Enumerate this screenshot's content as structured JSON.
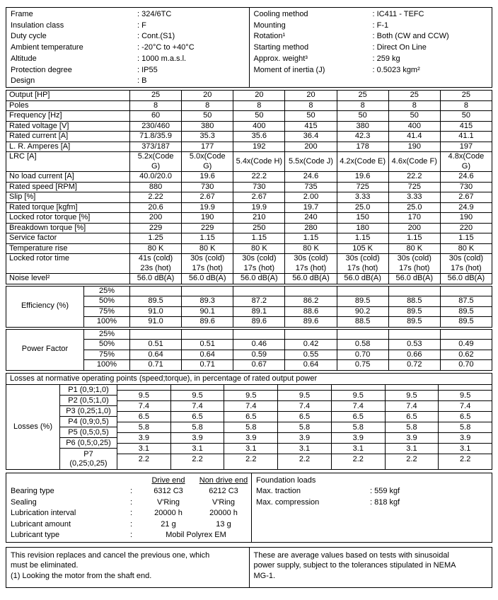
{
  "colors": {
    "background": "#ffffff",
    "text": "#000000",
    "border": "#000000"
  },
  "info": {
    "left": [
      {
        "label": "Frame",
        "value": "324/6TC"
      },
      {
        "label": "Insulation class",
        "value": "F"
      },
      {
        "label": "Duty cycle",
        "value": "Cont.(S1)"
      },
      {
        "label": "Ambient temperature",
        "value": "-20°C to +40°C"
      },
      {
        "label": "Altitude",
        "value": "1000 m.a.s.l."
      },
      {
        "label": "Protection degree",
        "value": "IP55"
      },
      {
        "label": "Design",
        "value": "B"
      }
    ],
    "right": [
      {
        "label": "Cooling method",
        "value": "IC411 - TEFC"
      },
      {
        "label": "Mounting",
        "value": "F-1"
      },
      {
        "label": "Rotation¹",
        "value": "Both (CW and CCW)"
      },
      {
        "label": "Starting method",
        "value": "Direct On Line"
      },
      {
        "label": "Approx. weight³",
        "value": "259 kg"
      },
      {
        "label": "Moment of inertia (J)",
        "value": "0.5023 kgm²"
      }
    ]
  },
  "spec_table": {
    "rows": [
      {
        "label": "Output [HP]",
        "values": [
          "25",
          "20",
          "20",
          "20",
          "25",
          "25",
          "25"
        ]
      },
      {
        "label": "Poles",
        "values": [
          "8",
          "8",
          "8",
          "8",
          "8",
          "8",
          "8"
        ]
      },
      {
        "label": "Frequency [Hz]",
        "values": [
          "60",
          "50",
          "50",
          "50",
          "50",
          "50",
          "50"
        ]
      },
      {
        "label": "Rated voltage [V]",
        "values": [
          "230/460",
          "380",
          "400",
          "415",
          "380",
          "400",
          "415"
        ]
      },
      {
        "label": "Rated current [A]",
        "values": [
          "71.8/35.9",
          "35.3",
          "35.6",
          "36.4",
          "42.3",
          "41.4",
          "41.1"
        ]
      },
      {
        "label": "L. R. Amperes [A]",
        "values": [
          "373/187",
          "177",
          "192",
          "200",
          "178",
          "190",
          "197"
        ]
      },
      {
        "label": "LRC [A]",
        "values": [
          "5.2x(Code\nG)",
          "5.0x(Code\nG)",
          "5.4x(Code H)",
          "5.5x(Code J)",
          "4.2x(Code E)",
          "4.6x(Code F)",
          "4.8x(Code\nG)"
        ]
      },
      {
        "label": "No load current [A]",
        "values": [
          "40.0/20.0",
          "19.6",
          "22.2",
          "24.6",
          "19.6",
          "22.2",
          "24.6"
        ]
      },
      {
        "label": "Rated speed [RPM]",
        "values": [
          "880",
          "730",
          "730",
          "735",
          "725",
          "725",
          "730"
        ]
      },
      {
        "label": "Slip [%]",
        "values": [
          "2.22",
          "2.67",
          "2.67",
          "2.00",
          "3.33",
          "3.33",
          "2.67"
        ]
      },
      {
        "label": "Rated torque [kgfm]",
        "values": [
          "20.6",
          "19.9",
          "19.9",
          "19.7",
          "25.0",
          "25.0",
          "24.9"
        ]
      },
      {
        "label": "Locked rotor torque [%]",
        "values": [
          "200",
          "190",
          "210",
          "240",
          "150",
          "170",
          "190"
        ]
      },
      {
        "label": "Breakdown torque [%]",
        "values": [
          "229",
          "229",
          "250",
          "280",
          "180",
          "200",
          "220"
        ]
      },
      {
        "label": "Service factor",
        "values": [
          "1.25",
          "1.15",
          "1.15",
          "1.15",
          "1.15",
          "1.15",
          "1.15"
        ]
      },
      {
        "label": "Temperature rise",
        "values": [
          "80 K",
          "80 K",
          "80 K",
          "80 K",
          "105 K",
          "80 K",
          "80 K"
        ]
      },
      {
        "label": "Locked rotor time",
        "values": [
          "41s (cold)\n23s (hot)",
          "30s (cold)\n17s (hot)",
          "30s (cold)\n17s (hot)",
          "30s (cold)\n17s (hot)",
          "30s (cold)\n17s (hot)",
          "30s (cold)\n17s (hot)",
          "30s (cold)\n17s (hot)"
        ]
      },
      {
        "label": "Noise level²",
        "values": [
          "56.0 dB(A)",
          "56.0 dB(A)",
          "56.0 dB(A)",
          "56.0 dB(A)",
          "56.0 dB(A)",
          "56.0 dB(A)",
          "56.0 dB(A)"
        ]
      }
    ]
  },
  "efficiency": {
    "label": "Efficiency (%)",
    "rows": [
      {
        "load": "25%",
        "values": [
          "",
          "",
          "",
          "",
          "",
          "",
          ""
        ]
      },
      {
        "load": "50%",
        "values": [
          "89.5",
          "89.3",
          "87.2",
          "86.2",
          "89.5",
          "88.5",
          "87.5"
        ]
      },
      {
        "load": "75%",
        "values": [
          "91.0",
          "90.1",
          "89.1",
          "88.6",
          "90.2",
          "89.5",
          "89.5"
        ]
      },
      {
        "load": "100%",
        "values": [
          "91.0",
          "89.6",
          "89.6",
          "89.6",
          "88.5",
          "89.5",
          "89.5"
        ]
      }
    ]
  },
  "power_factor": {
    "label": "Power Factor",
    "rows": [
      {
        "load": "25%",
        "values": [
          "",
          "",
          "",
          "",
          "",
          "",
          ""
        ]
      },
      {
        "load": "50%",
        "values": [
          "0.51",
          "0.51",
          "0.46",
          "0.42",
          "0.58",
          "0.53",
          "0.49"
        ]
      },
      {
        "load": "75%",
        "values": [
          "0.64",
          "0.64",
          "0.59",
          "0.55",
          "0.70",
          "0.66",
          "0.62"
        ]
      },
      {
        "load": "100%",
        "values": [
          "0.71",
          "0.71",
          "0.67",
          "0.64",
          "0.75",
          "0.72",
          "0.70"
        ]
      }
    ]
  },
  "losses": {
    "header": "Losses at normative operating points (speed;torque), in percentage of rated output power",
    "label": "Losses (%)",
    "rows": [
      {
        "point": "P1 (0,9;1,0)",
        "values": [
          "9.5",
          "9.5",
          "9.5",
          "9.5",
          "9.5",
          "9.5",
          "9.5"
        ]
      },
      {
        "point": "P2 (0,5;1,0)",
        "values": [
          "7.4",
          "7.4",
          "7.4",
          "7.4",
          "7.4",
          "7.4",
          "7.4"
        ]
      },
      {
        "point": "P3 (0,25;1,0)",
        "values": [
          "6.5",
          "6.5",
          "6.5",
          "6.5",
          "6.5",
          "6.5",
          "6.5"
        ]
      },
      {
        "point": "P4 (0,9;0,5)",
        "values": [
          "5.8",
          "5.8",
          "5.8",
          "5.8",
          "5.8",
          "5.8",
          "5.8"
        ]
      },
      {
        "point": "P5 (0,5;0,5)",
        "values": [
          "3.9",
          "3.9",
          "3.9",
          "3.9",
          "3.9",
          "3.9",
          "3.9"
        ]
      },
      {
        "point": "P6 (0,5;0,25)",
        "values": [
          "3.1",
          "3.1",
          "3.1",
          "3.1",
          "3.1",
          "3.1",
          "3.1"
        ]
      },
      {
        "point": "P7\n(0,25;0,25)",
        "values": [
          "2.2",
          "2.2",
          "2.2",
          "2.2",
          "2.2",
          "2.2",
          "2.2"
        ]
      }
    ]
  },
  "bearings": {
    "col_headers": [
      "Drive end",
      "Non drive end"
    ],
    "rows": [
      {
        "label": "Bearing type",
        "values": [
          "6312 C3",
          "6212 C3"
        ]
      },
      {
        "label": "Sealing",
        "values": [
          "V'Ring",
          "V'Ring"
        ]
      },
      {
        "label": "Lubrication interval",
        "values": [
          "20000 h",
          "20000 h"
        ]
      },
      {
        "label": "Lubricant amount",
        "values": [
          "21 g",
          "13 g"
        ]
      },
      {
        "label": "Lubricant type",
        "values": [
          "Mobil Polyrex EM"
        ],
        "span": true
      }
    ]
  },
  "foundation": {
    "title": "Foundation loads",
    "rows": [
      {
        "label": "Max. traction",
        "value": "559 kgf"
      },
      {
        "label": "Max. compression",
        "value": "818 kgf"
      }
    ]
  },
  "footer": {
    "left_note": "This revision replaces and cancel the previous one, which must be eliminated.",
    "left_footnote": "(1) Looking the motor from the shaft end.",
    "right_note": "These are average values based on tests with sinusoidal power supply, subject to the tolerances stipulated in NEMA MG-1."
  }
}
